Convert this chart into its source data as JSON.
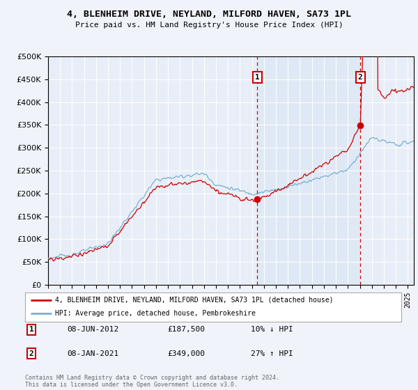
{
  "title": "4, BLENHEIM DRIVE, NEYLAND, MILFORD HAVEN, SA73 1PL",
  "subtitle": "Price paid vs. HM Land Registry's House Price Index (HPI)",
  "legend_line1": "4, BLENHEIM DRIVE, NEYLAND, MILFORD HAVEN, SA73 1PL (detached house)",
  "legend_line2": "HPI: Average price, detached house, Pembrokeshire",
  "annotation1_label": "1",
  "annotation1_date": "08-JUN-2012",
  "annotation1_price": "£187,500",
  "annotation1_hpi": "10% ↓ HPI",
  "annotation2_label": "2",
  "annotation2_date": "08-JAN-2021",
  "annotation2_price": "£349,000",
  "annotation2_hpi": "27% ↑ HPI",
  "footer": "Contains HM Land Registry data © Crown copyright and database right 2024.\nThis data is licensed under the Open Government Licence v3.0.",
  "background_color": "#f0f4fa",
  "plot_bg_color": "#e8eef8",
  "line_red": "#cc0000",
  "line_blue": "#7aafd4",
  "vline_color": "#cc0000",
  "annotation_box_color": "#cc0000",
  "shade_color": "#dce8f5",
  "ylim": [
    0,
    500000
  ],
  "yticks": [
    0,
    50000,
    100000,
    150000,
    200000,
    250000,
    300000,
    350000,
    400000,
    450000,
    500000
  ],
  "x_start_year": 1995,
  "x_end_year": 2025,
  "sale1_year": 2012.44,
  "sale1_price": 187500,
  "sale2_year": 2021.03,
  "sale2_price": 349000
}
